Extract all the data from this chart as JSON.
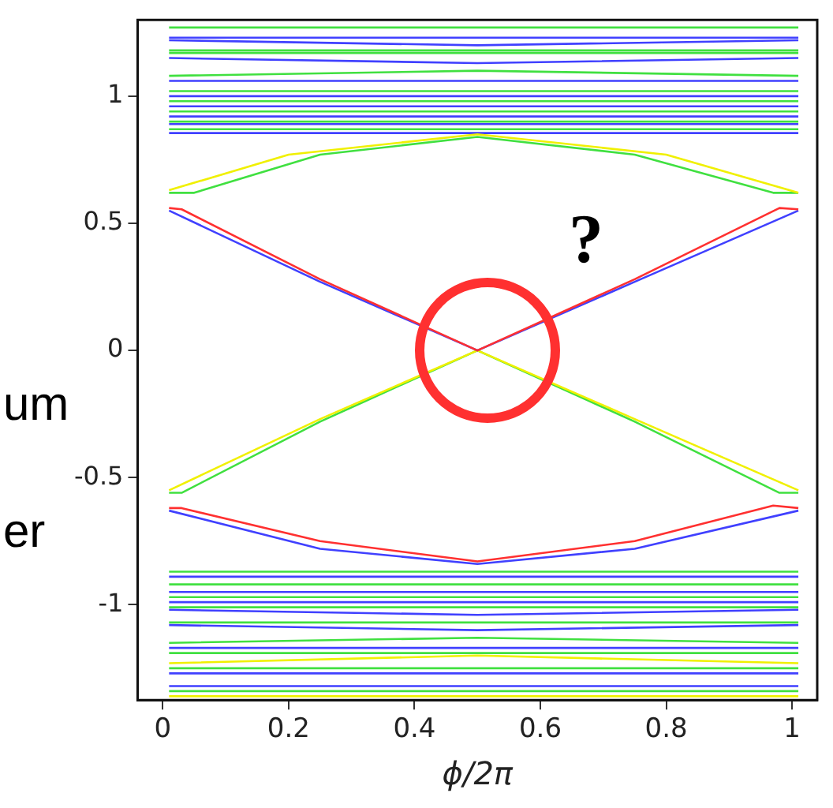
{
  "chart_data": {
    "type": "line",
    "xlabel": "ϕ/2π",
    "xlim": [
      -0.04,
      1.04
    ],
    "ylim": [
      -1.375,
      1.3
    ],
    "xticks": [
      0,
      0.2,
      0.4,
      0.6,
      0.8,
      1
    ],
    "yticks": [
      -1,
      -0.5,
      0,
      0.5,
      1
    ],
    "grid": false,
    "legend": false,
    "marker": "none",
    "line_style": "solid",
    "annotations": [
      "um",
      "er",
      "?"
    ],
    "series": [
      {
        "color": "#ff3030",
        "x": [
          0.01,
          0.03,
          0.25,
          0.5,
          0.75,
          0.98,
          1.01
        ],
        "values": [
          0.56,
          0.555,
          0.28,
          0.0,
          0.28,
          0.56,
          0.555
        ]
      },
      {
        "color": "#4040ff",
        "x": [
          0.01,
          0.25,
          0.5,
          0.75,
          1.01
        ],
        "values": [
          0.55,
          0.27,
          0.0,
          0.27,
          0.55
        ]
      },
      {
        "color": "#f0f000",
        "x": [
          0.01,
          0.25,
          0.5,
          0.75,
          1.01
        ],
        "values": [
          -0.55,
          -0.27,
          0.0,
          -0.27,
          -0.55
        ]
      },
      {
        "color": "#40e040",
        "x": [
          0.01,
          0.03,
          0.25,
          0.5,
          0.75,
          0.98,
          1.01
        ],
        "values": [
          -0.56,
          -0.56,
          -0.28,
          0.0,
          -0.28,
          -0.56,
          -0.56
        ]
      },
      {
        "color": "#f0f000",
        "x": [
          0.01,
          0.2,
          0.5,
          0.8,
          1.01
        ],
        "values": [
          0.63,
          0.77,
          0.85,
          0.77,
          0.62
        ]
      },
      {
        "color": "#40e040",
        "x": [
          0.01,
          0.05,
          0.25,
          0.5,
          0.75,
          0.97,
          1.01
        ],
        "values": [
          0.62,
          0.62,
          0.77,
          0.84,
          0.77,
          0.62,
          0.62
        ]
      },
      {
        "color": "#ff3030",
        "x": [
          0.01,
          0.03,
          0.25,
          0.5,
          0.75,
          0.97,
          1.01
        ],
        "values": [
          -0.62,
          -0.62,
          -0.75,
          -0.83,
          -0.75,
          -0.61,
          -0.62
        ]
      },
      {
        "color": "#4040ff",
        "x": [
          0.01,
          0.25,
          0.5,
          0.75,
          1.01
        ],
        "values": [
          -0.63,
          -0.78,
          -0.84,
          -0.78,
          -0.63
        ]
      },
      {
        "color": "#40e040",
        "x": [
          0.01,
          1.01
        ],
        "values": [
          1.27,
          1.27
        ]
      },
      {
        "color": "#4040ff",
        "x": [
          0.01,
          1.01
        ],
        "values": [
          1.23,
          1.23
        ]
      },
      {
        "color": "#4040ff",
        "x": [
          0.01,
          0.5,
          1.01
        ],
        "values": [
          1.22,
          1.2,
          1.22
        ]
      },
      {
        "color": "#40e040",
        "x": [
          0.01,
          1.01
        ],
        "values": [
          1.18,
          1.18
        ]
      },
      {
        "color": "#40e040",
        "x": [
          0.01,
          1.01
        ],
        "values": [
          1.17,
          1.17
        ]
      },
      {
        "color": "#4040ff",
        "x": [
          0.01,
          0.5,
          1.01
        ],
        "values": [
          1.15,
          1.13,
          1.15
        ]
      },
      {
        "color": "#40e040",
        "x": [
          0.01,
          0.5,
          1.01
        ],
        "values": [
          1.08,
          1.1,
          1.08
        ]
      },
      {
        "color": "#4040ff",
        "x": [
          0.01,
          1.01
        ],
        "values": [
          1.06,
          1.06
        ]
      },
      {
        "color": "#40e040",
        "x": [
          0.01,
          1.01
        ],
        "values": [
          1.02,
          1.02
        ]
      },
      {
        "color": "#4040ff",
        "x": [
          0.01,
          1.01
        ],
        "values": [
          1.0,
          1.0
        ]
      },
      {
        "color": "#40e040",
        "x": [
          0.01,
          1.01
        ],
        "values": [
          0.98,
          0.98
        ]
      },
      {
        "color": "#4040ff",
        "x": [
          0.01,
          1.01
        ],
        "values": [
          0.96,
          0.96
        ]
      },
      {
        "color": "#40e040",
        "x": [
          0.01,
          1.01
        ],
        "values": [
          0.94,
          0.94
        ]
      },
      {
        "color": "#4040ff",
        "x": [
          0.01,
          1.01
        ],
        "values": [
          0.92,
          0.92
        ]
      },
      {
        "color": "#40e040",
        "x": [
          0.01,
          1.01
        ],
        "values": [
          0.9,
          0.9
        ]
      },
      {
        "color": "#4040ff",
        "x": [
          0.01,
          1.01
        ],
        "values": [
          0.89,
          0.89
        ]
      },
      {
        "color": "#40e040",
        "x": [
          0.01,
          1.01
        ],
        "values": [
          0.87,
          0.87
        ]
      },
      {
        "color": "#4040ff",
        "x": [
          0.01,
          1.01
        ],
        "values": [
          0.855,
          0.855
        ]
      },
      {
        "color": "#40e040",
        "x": [
          0.01,
          1.01
        ],
        "values": [
          -0.87,
          -0.87
        ]
      },
      {
        "color": "#4040ff",
        "x": [
          0.01,
          1.01
        ],
        "values": [
          -0.89,
          -0.89
        ]
      },
      {
        "color": "#40e040",
        "x": [
          0.01,
          1.01
        ],
        "values": [
          -0.92,
          -0.92
        ]
      },
      {
        "color": "#4040ff",
        "x": [
          0.01,
          1.01
        ],
        "values": [
          -0.95,
          -0.95
        ]
      },
      {
        "color": "#40e040",
        "x": [
          0.01,
          1.01
        ],
        "values": [
          -0.97,
          -0.97
        ]
      },
      {
        "color": "#4040ff",
        "x": [
          0.01,
          1.01
        ],
        "values": [
          -0.99,
          -0.99
        ]
      },
      {
        "color": "#40e040",
        "x": [
          0.01,
          1.01
        ],
        "values": [
          -1.01,
          -1.01
        ]
      },
      {
        "color": "#4040ff",
        "x": [
          0.01,
          0.5,
          1.01
        ],
        "values": [
          -1.02,
          -1.04,
          -1.02
        ]
      },
      {
        "color": "#40e040",
        "x": [
          0.01,
          1.01
        ],
        "values": [
          -1.07,
          -1.07
        ]
      },
      {
        "color": "#4040ff",
        "x": [
          0.01,
          0.5,
          1.01
        ],
        "values": [
          -1.08,
          -1.1,
          -1.08
        ]
      },
      {
        "color": "#40e040",
        "x": [
          0.01,
          0.5,
          1.01
        ],
        "values": [
          -1.15,
          -1.13,
          -1.15
        ]
      },
      {
        "color": "#4040ff",
        "x": [
          0.01,
          1.01
        ],
        "values": [
          -1.17,
          -1.17
        ]
      },
      {
        "color": "#40e040",
        "x": [
          0.01,
          1.01
        ],
        "values": [
          -1.19,
          -1.19
        ]
      },
      {
        "color": "#f0f000",
        "x": [
          0.01,
          0.5,
          1.01
        ],
        "values": [
          -1.23,
          -1.2,
          -1.23
        ]
      },
      {
        "color": "#40e040",
        "x": [
          0.01,
          1.01
        ],
        "values": [
          -1.25,
          -1.25
        ]
      },
      {
        "color": "#4040ff",
        "x": [
          0.01,
          1.01
        ],
        "values": [
          -1.27,
          -1.27
        ]
      },
      {
        "color": "#4040ff",
        "x": [
          0.01,
          1.01
        ],
        "values": [
          -1.32,
          -1.32
        ]
      },
      {
        "color": "#40e040",
        "x": [
          0.01,
          1.01
        ],
        "values": [
          -1.34,
          -1.34
        ]
      },
      {
        "color": "#f0f000",
        "x": [
          0.01,
          1.01
        ],
        "values": [
          -1.36,
          -1.36
        ]
      }
    ]
  }
}
